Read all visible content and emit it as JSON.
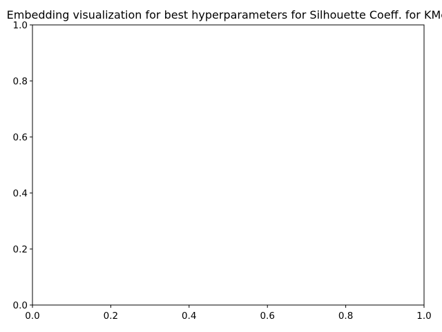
{
  "chart_data": {
    "type": "scatter",
    "title": "Embedding visualization for best hyperparameters for Silhouette Coeff. for KMeans",
    "xlabel": "",
    "ylabel": "",
    "xlim": [
      0,
      1
    ],
    "ylim": [
      0,
      1
    ],
    "xticks": [
      "0.0",
      "0.2",
      "0.4",
      "0.6",
      "0.8",
      "1.0"
    ],
    "yticks": [
      "0.0",
      "0.2",
      "0.4",
      "0.6",
      "0.8",
      "1.0"
    ],
    "grid": false,
    "series": []
  },
  "colors": {
    "axis": "#000000",
    "background": "#ffffff"
  }
}
